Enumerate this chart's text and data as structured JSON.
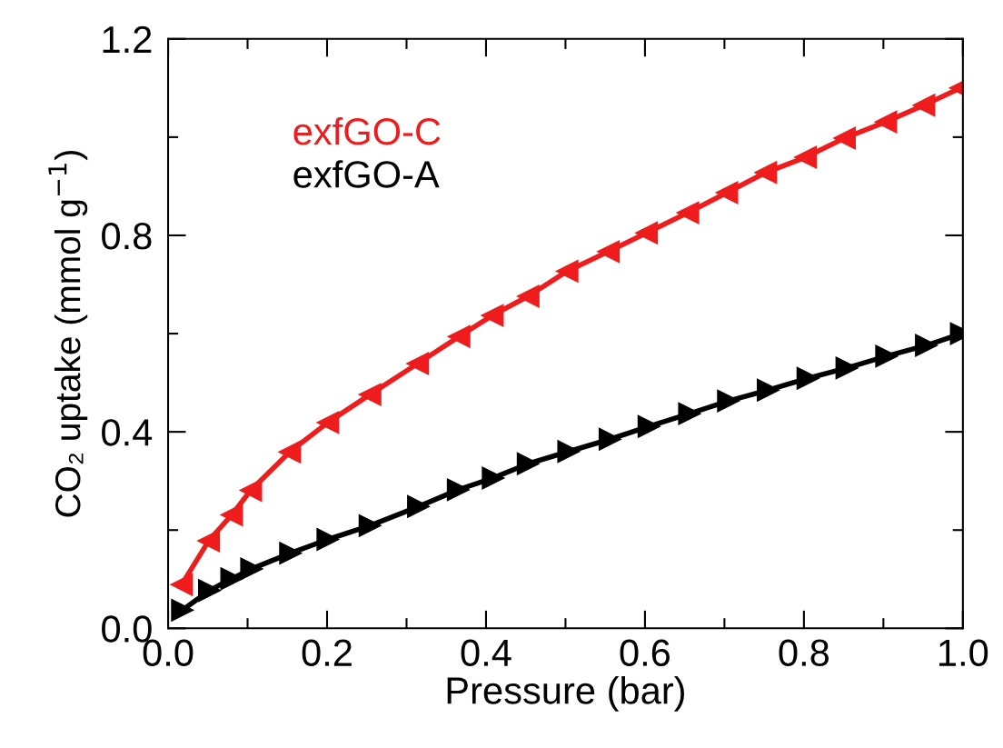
{
  "chart_data": {
    "type": "line",
    "xlabel": "Pressure (bar)",
    "ylabel": "CO₂ uptake (mmol g$^{−1}$)",
    "series": [
      {
        "name": "exfGO-C",
        "color": "#ee1c1c",
        "marker": "triangle",
        "x": [
          0.017,
          0.051,
          0.08,
          0.104,
          0.153,
          0.201,
          0.254,
          0.314,
          0.366,
          0.408,
          0.453,
          0.502,
          0.554,
          0.602,
          0.654,
          0.703,
          0.752,
          0.802,
          0.851,
          0.903,
          0.951,
          0.997
        ],
        "values": [
          0.089,
          0.178,
          0.231,
          0.281,
          0.359,
          0.419,
          0.476,
          0.539,
          0.594,
          0.637,
          0.676,
          0.727,
          0.767,
          0.805,
          0.846,
          0.887,
          0.928,
          0.959,
          0.998,
          1.031,
          1.065,
          1.1
        ]
      },
      {
        "name": "exfGO-A",
        "color": "#000000",
        "marker": "triangle",
        "x": [
          0.018,
          0.052,
          0.08,
          0.105,
          0.154,
          0.201,
          0.254,
          0.315,
          0.365,
          0.409,
          0.453,
          0.504,
          0.556,
          0.605,
          0.656,
          0.705,
          0.755,
          0.805,
          0.854,
          0.904,
          0.954,
          0.998
        ],
        "values": [
          0.037,
          0.077,
          0.101,
          0.121,
          0.153,
          0.181,
          0.209,
          0.248,
          0.282,
          0.306,
          0.335,
          0.36,
          0.385,
          0.411,
          0.437,
          0.463,
          0.485,
          0.509,
          0.53,
          0.554,
          0.576,
          0.6
        ]
      }
    ],
    "xlim": [
      0.0,
      1.0
    ],
    "ylim": [
      0.0,
      1.2
    ],
    "xticks": [
      {
        "value": 0.0,
        "label": "0.0"
      },
      {
        "value": 0.1,
        "label": null
      },
      0.2,
      {
        "value": 0.3,
        "label": null
      },
      0.4,
      {
        "value": 0.5,
        "label": null
      },
      0.6,
      {
        "value": 0.7,
        "label": null
      },
      0.8,
      {
        "value": 0.9,
        "label": null
      },
      {
        "value": 1.0,
        "label": "1.0"
      }
    ],
    "yticks": [
      {
        "value": 0.0,
        "label": "0.0"
      },
      {
        "value": 0.2,
        "label": null
      },
      0.4,
      {
        "value": 0.6,
        "label": null
      },
      0.8,
      {
        "value": 1.0,
        "label": null
      },
      1.2
    ],
    "legend": "top left",
    "grid": false,
    "line_style": "solid"
  }
}
